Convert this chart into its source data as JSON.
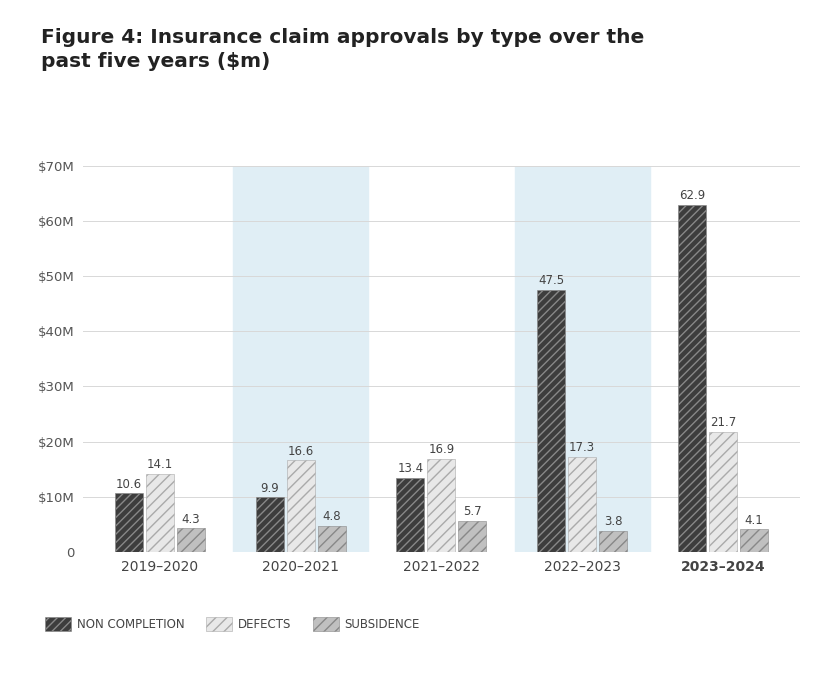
{
  "title": "Figure 4: Insurance claim approvals by type over the\npast five years ($m)",
  "categories": [
    "2019–2020",
    "2020–2021",
    "2021–2022",
    "2022–2023",
    "2023–2024"
  ],
  "non_completion": [
    10.6,
    9.9,
    13.4,
    47.5,
    62.9
  ],
  "defects": [
    14.1,
    16.6,
    16.9,
    17.3,
    21.7
  ],
  "subsidence": [
    4.3,
    4.8,
    5.7,
    3.8,
    4.1
  ],
  "ylim": [
    0,
    70
  ],
  "yticks": [
    0,
    10,
    20,
    30,
    40,
    50,
    60,
    70
  ],
  "ytick_labels": [
    "0",
    "$10M",
    "$20M",
    "$30M",
    "$40M",
    "$50M",
    "$60M",
    "$70M"
  ],
  "shaded_years": [
    1,
    3
  ],
  "shade_color": "#e0eef5",
  "background_color": "#ffffff",
  "legend_labels": [
    "NON COMPLETION",
    "DEFECTS",
    "SUBSIDENCE"
  ],
  "bar_width": 0.2,
  "nc_color": "#3d3d3d",
  "def_color": "#c5c5c5",
  "sub_color": "#b0b0b0",
  "label_fontsize": 8.5,
  "label_color": "#444444",
  "ytick_fontsize": 9.5,
  "xtick_fontsize": 10
}
